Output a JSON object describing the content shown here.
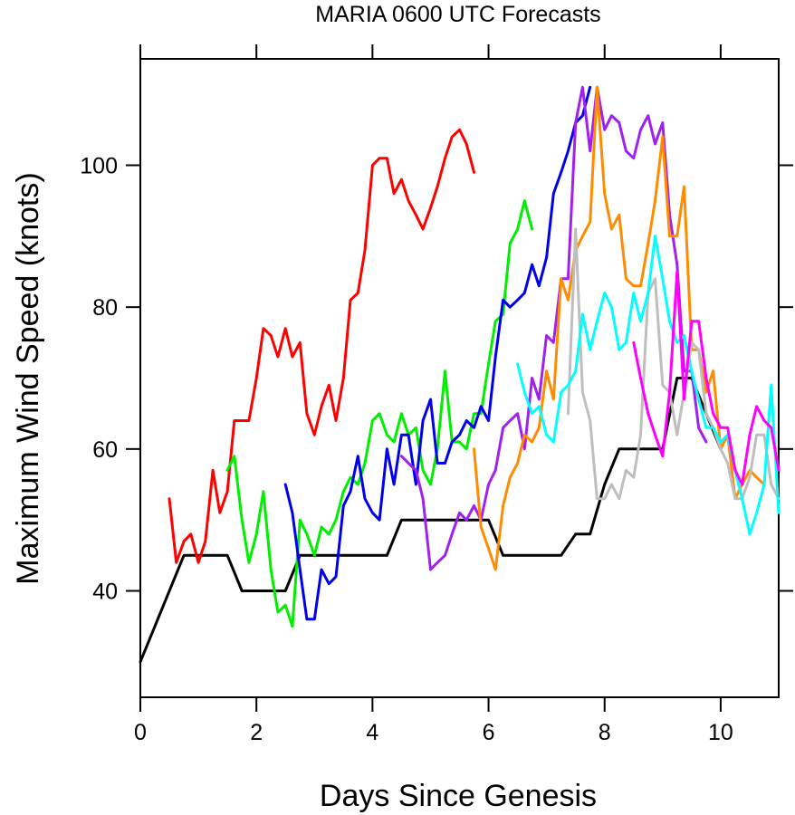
{
  "chart_data": {
    "type": "line",
    "title": "MARIA 0600 UTC Forecasts",
    "xlabel": "Days Since Genesis",
    "ylabel": "Maximum Wind Speed (knots)",
    "xlim": [
      0,
      11
    ],
    "ylim": [
      25,
      115
    ],
    "xticks": [
      0,
      2,
      4,
      6,
      8,
      10
    ],
    "yticks": [
      40,
      60,
      80,
      100
    ],
    "grid": false,
    "legend": "none",
    "series": [
      {
        "color": "#000000",
        "points": [
          [
            0,
            30
          ],
          [
            0.75,
            45
          ],
          [
            1.5,
            45
          ],
          [
            1.75,
            40
          ],
          [
            2.5,
            40
          ],
          [
            2.75,
            45
          ],
          [
            4.25,
            45
          ],
          [
            4.5,
            50
          ],
          [
            5.75,
            50
          ],
          [
            6,
            50
          ],
          [
            6.25,
            45
          ],
          [
            7.25,
            45
          ],
          [
            7.5,
            48
          ],
          [
            7.75,
            48
          ],
          [
            8,
            55
          ],
          [
            8.25,
            60
          ],
          [
            9,
            60
          ],
          [
            9.25,
            70
          ],
          [
            9.5,
            70
          ],
          [
            9.75,
            65
          ],
          [
            10,
            60
          ]
        ]
      },
      {
        "color": "#ff0000",
        "points": [
          [
            0.5,
            53
          ],
          [
            0.62,
            44
          ],
          [
            0.75,
            47
          ],
          [
            0.87,
            48
          ],
          [
            1,
            44
          ],
          [
            1.12,
            47
          ],
          [
            1.25,
            57
          ],
          [
            1.37,
            51
          ],
          [
            1.5,
            54
          ],
          [
            1.62,
            64
          ],
          [
            1.75,
            64
          ],
          [
            1.87,
            64
          ],
          [
            2,
            70
          ],
          [
            2.12,
            77
          ],
          [
            2.25,
            76
          ],
          [
            2.37,
            73
          ],
          [
            2.5,
            77
          ],
          [
            2.62,
            73
          ],
          [
            2.75,
            75
          ],
          [
            2.87,
            65
          ],
          [
            3,
            62
          ],
          [
            3.12,
            66
          ],
          [
            3.25,
            69
          ],
          [
            3.37,
            64
          ],
          [
            3.5,
            70
          ],
          [
            3.62,
            81
          ],
          [
            3.75,
            82
          ],
          [
            3.87,
            88
          ],
          [
            4,
            100
          ],
          [
            4.12,
            101
          ],
          [
            4.25,
            101
          ],
          [
            4.37,
            96
          ],
          [
            4.5,
            98
          ],
          [
            4.62,
            95
          ],
          [
            4.75,
            93
          ],
          [
            4.87,
            91
          ],
          [
            5,
            94
          ],
          [
            5.12,
            97
          ],
          [
            5.25,
            101
          ],
          [
            5.37,
            104
          ],
          [
            5.5,
            105
          ],
          [
            5.62,
            103
          ],
          [
            5.75,
            99
          ]
        ]
      },
      {
        "color": "#00ee00",
        "points": [
          [
            1.5,
            57
          ],
          [
            1.62,
            59
          ],
          [
            1.75,
            50
          ],
          [
            1.87,
            44
          ],
          [
            2,
            48
          ],
          [
            2.12,
            54
          ],
          [
            2.25,
            43
          ],
          [
            2.37,
            37
          ],
          [
            2.5,
            38
          ],
          [
            2.62,
            35
          ],
          [
            2.75,
            50
          ],
          [
            2.87,
            48
          ],
          [
            3,
            45
          ],
          [
            3.12,
            49
          ],
          [
            3.25,
            48
          ],
          [
            3.37,
            50
          ],
          [
            3.5,
            54
          ],
          [
            3.62,
            56
          ],
          [
            3.75,
            55
          ],
          [
            3.87,
            58
          ],
          [
            4,
            64
          ],
          [
            4.12,
            65
          ],
          [
            4.25,
            62
          ],
          [
            4.37,
            61
          ],
          [
            4.5,
            65
          ],
          [
            4.62,
            62
          ],
          [
            4.75,
            63
          ],
          [
            4.87,
            57
          ],
          [
            5,
            55
          ],
          [
            5.12,
            60
          ],
          [
            5.25,
            71
          ],
          [
            5.37,
            61
          ],
          [
            5.5,
            61
          ],
          [
            5.62,
            60
          ],
          [
            5.75,
            65
          ],
          [
            5.87,
            65
          ],
          [
            6,
            72
          ],
          [
            6.12,
            78
          ],
          [
            6.25,
            79
          ],
          [
            6.37,
            89
          ],
          [
            6.5,
            91
          ],
          [
            6.62,
            95
          ],
          [
            6.75,
            91
          ]
        ]
      },
      {
        "color": "#0000ee",
        "points": [
          [
            2.5,
            55
          ],
          [
            2.62,
            51
          ],
          [
            2.75,
            43
          ],
          [
            2.87,
            36
          ],
          [
            3,
            36
          ],
          [
            3.12,
            43
          ],
          [
            3.25,
            41
          ],
          [
            3.37,
            42
          ],
          [
            3.5,
            52
          ],
          [
            3.62,
            54
          ],
          [
            3.75,
            59
          ],
          [
            3.87,
            53
          ],
          [
            4,
            51
          ],
          [
            4.12,
            50
          ],
          [
            4.25,
            60
          ],
          [
            4.37,
            55
          ],
          [
            4.5,
            62
          ],
          [
            4.62,
            62
          ],
          [
            4.75,
            55
          ],
          [
            4.87,
            64
          ],
          [
            5,
            67
          ],
          [
            5.12,
            58
          ],
          [
            5.25,
            58
          ],
          [
            5.37,
            61
          ],
          [
            5.5,
            62
          ],
          [
            5.62,
            64
          ],
          [
            5.75,
            63
          ],
          [
            5.87,
            66
          ],
          [
            6,
            64
          ],
          [
            6.12,
            73
          ],
          [
            6.25,
            81
          ],
          [
            6.37,
            80
          ],
          [
            6.5,
            81
          ],
          [
            6.62,
            82
          ],
          [
            6.75,
            86
          ],
          [
            6.87,
            83
          ],
          [
            7,
            87
          ],
          [
            7.12,
            96
          ],
          [
            7.25,
            99
          ],
          [
            7.37,
            102
          ],
          [
            7.5,
            106
          ],
          [
            7.62,
            107
          ],
          [
            7.75,
            111
          ]
        ]
      },
      {
        "color": "#a020f0",
        "points": [
          [
            4.5,
            59
          ],
          [
            4.62,
            58
          ],
          [
            4.75,
            57
          ],
          [
            4.87,
            53
          ],
          [
            5,
            43
          ],
          [
            5.12,
            44
          ],
          [
            5.25,
            45
          ],
          [
            5.37,
            48
          ],
          [
            5.5,
            51
          ],
          [
            5.62,
            50
          ],
          [
            5.75,
            52
          ],
          [
            5.87,
            50
          ],
          [
            6,
            55
          ],
          [
            6.12,
            57
          ],
          [
            6.25,
            63
          ],
          [
            6.37,
            64
          ],
          [
            6.5,
            65
          ],
          [
            6.62,
            60
          ],
          [
            6.75,
            70
          ],
          [
            6.87,
            67
          ],
          [
            7,
            76
          ],
          [
            7.12,
            75
          ],
          [
            7.25,
            84
          ],
          [
            7.37,
            84
          ],
          [
            7.5,
            106
          ],
          [
            7.62,
            111
          ],
          [
            7.75,
            102
          ],
          [
            7.87,
            111
          ],
          [
            8,
            105
          ],
          [
            8.12,
            107
          ],
          [
            8.25,
            106
          ],
          [
            8.37,
            102
          ],
          [
            8.5,
            101
          ],
          [
            8.62,
            105
          ],
          [
            8.75,
            107
          ],
          [
            8.87,
            103
          ],
          [
            9,
            106
          ],
          [
            9.12,
            93
          ],
          [
            9.25,
            86
          ],
          [
            9.37,
            71
          ],
          [
            9.5,
            71
          ],
          [
            9.62,
            63
          ],
          [
            9.75,
            61
          ]
        ]
      },
      {
        "color": "#ff8c00",
        "points": [
          [
            5.75,
            60
          ],
          [
            5.87,
            49
          ],
          [
            6,
            46
          ],
          [
            6.12,
            43
          ],
          [
            6.25,
            52
          ],
          [
            6.37,
            56
          ],
          [
            6.5,
            58
          ],
          [
            6.62,
            62
          ],
          [
            6.75,
            61
          ],
          [
            6.87,
            63
          ],
          [
            7,
            71
          ],
          [
            7.12,
            67
          ],
          [
            7.25,
            84
          ],
          [
            7.37,
            81
          ],
          [
            7.5,
            88
          ],
          [
            7.62,
            90
          ],
          [
            7.75,
            92
          ],
          [
            7.87,
            111
          ],
          [
            8,
            96
          ],
          [
            8.12,
            91
          ],
          [
            8.25,
            93
          ],
          [
            8.37,
            84
          ],
          [
            8.5,
            83
          ],
          [
            8.62,
            83
          ],
          [
            8.75,
            89
          ],
          [
            8.87,
            95
          ],
          [
            9,
            104
          ],
          [
            9.12,
            90
          ],
          [
            9.25,
            90
          ],
          [
            9.37,
            97
          ],
          [
            9.5,
            74
          ],
          [
            9.62,
            74
          ],
          [
            9.75,
            68
          ],
          [
            9.87,
            71
          ],
          [
            10,
            60
          ],
          [
            10.12,
            62
          ],
          [
            10.25,
            53
          ],
          [
            10.37,
            55
          ],
          [
            10.5,
            57
          ],
          [
            10.62,
            56
          ],
          [
            10.75,
            55
          ]
        ]
      },
      {
        "color": "#bebebe",
        "points": [
          [
            7.37,
            65
          ],
          [
            7.5,
            91
          ],
          [
            7.62,
            68
          ],
          [
            7.75,
            64
          ],
          [
            7.87,
            53
          ],
          [
            8,
            53
          ],
          [
            8.12,
            55
          ],
          [
            8.25,
            53
          ],
          [
            8.37,
            57
          ],
          [
            8.5,
            56
          ],
          [
            8.62,
            62
          ],
          [
            8.75,
            82
          ],
          [
            8.87,
            84
          ],
          [
            9,
            69
          ],
          [
            9.12,
            68
          ],
          [
            9.25,
            62
          ],
          [
            9.37,
            68
          ],
          [
            9.5,
            75
          ],
          [
            9.62,
            74
          ],
          [
            9.75,
            65
          ],
          [
            9.87,
            63
          ],
          [
            10,
            60
          ],
          [
            10.12,
            58
          ],
          [
            10.25,
            53
          ],
          [
            10.37,
            53
          ],
          [
            10.5,
            56
          ],
          [
            10.62,
            62
          ],
          [
            10.75,
            62
          ],
          [
            10.87,
            55
          ],
          [
            11,
            53
          ]
        ]
      },
      {
        "color": "#00ffff",
        "points": [
          [
            6.5,
            72
          ],
          [
            6.62,
            68
          ],
          [
            6.75,
            65
          ],
          [
            6.87,
            66
          ],
          [
            7,
            62
          ],
          [
            7.12,
            61
          ],
          [
            7.25,
            68
          ],
          [
            7.37,
            69
          ],
          [
            7.5,
            71
          ],
          [
            7.62,
            79
          ],
          [
            7.75,
            74
          ],
          [
            7.87,
            78
          ],
          [
            8,
            82
          ],
          [
            8.12,
            80
          ],
          [
            8.25,
            74
          ],
          [
            8.37,
            75
          ],
          [
            8.5,
            82
          ],
          [
            8.62,
            78
          ],
          [
            8.75,
            82
          ],
          [
            8.87,
            90
          ],
          [
            9,
            84
          ],
          [
            9.12,
            78
          ],
          [
            9.25,
            75
          ],
          [
            9.37,
            76
          ],
          [
            9.5,
            71
          ],
          [
            9.62,
            67
          ],
          [
            9.75,
            63
          ],
          [
            9.87,
            63
          ],
          [
            10,
            61
          ],
          [
            10.12,
            62
          ],
          [
            10.25,
            57
          ],
          [
            10.37,
            53
          ],
          [
            10.5,
            48
          ],
          [
            10.62,
            51
          ],
          [
            10.75,
            55
          ],
          [
            10.87,
            69
          ],
          [
            11,
            51
          ]
        ]
      },
      {
        "color": "#ff00ff",
        "points": [
          [
            8.5,
            75
          ],
          [
            8.62,
            70
          ],
          [
            8.75,
            65
          ],
          [
            8.87,
            62
          ],
          [
            9,
            59
          ],
          [
            9.12,
            68
          ],
          [
            9.25,
            85
          ],
          [
            9.37,
            67
          ],
          [
            9.5,
            78
          ],
          [
            9.62,
            78
          ],
          [
            9.75,
            70
          ],
          [
            9.87,
            65
          ],
          [
            10,
            63
          ],
          [
            10.12,
            63
          ],
          [
            10.25,
            57
          ],
          [
            10.37,
            55
          ],
          [
            10.5,
            62
          ],
          [
            10.62,
            66
          ],
          [
            10.75,
            64
          ],
          [
            10.87,
            63
          ],
          [
            11,
            57
          ]
        ]
      }
    ]
  }
}
